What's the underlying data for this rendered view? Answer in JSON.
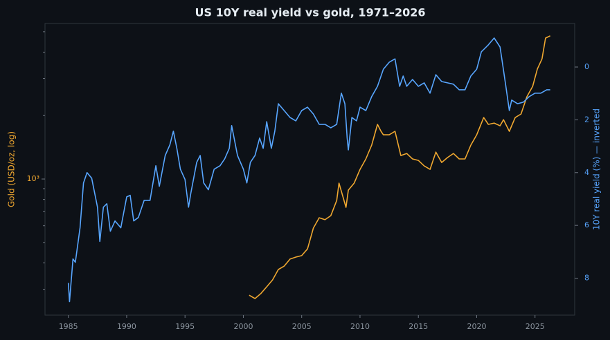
{
  "chart_data": {
    "type": "line",
    "title": "US 10Y real yield vs gold, 1971–2026",
    "y_label": "Gold (USD/oz, log)",
    "y2_label": "10Y real yield (%) — inverted",
    "xlim": [
      1983,
      2028.4
    ],
    "xticks": [
      1985,
      1990,
      1995,
      2000,
      2005,
      2010,
      2015,
      2020,
      2025
    ],
    "ylim": [
      226,
      5470
    ],
    "y_log": true,
    "yticks": [
      {
        "value": 1000,
        "label": "10³"
      }
    ],
    "yticks_minor": [
      300,
      400,
      500,
      600,
      700,
      800,
      900,
      2000,
      3000,
      4000,
      5000
    ],
    "y2lim": [
      -1.65,
      9.4
    ],
    "y2_inverted": true,
    "y2ticks": [
      0,
      2,
      4,
      6,
      8
    ],
    "series": [
      {
        "name": "Gold",
        "color": "#f0a830",
        "axis": "y",
        "x": [
          2000.5,
          2001.0,
          2001.5,
          2002.0,
          2002.5,
          2003.0,
          2003.5,
          2004.0,
          2004.5,
          2005.0,
          2005.5,
          2006.0,
          2006.5,
          2007.0,
          2007.5,
          2008.0,
          2008.2,
          2008.8,
          2009.0,
          2009.5,
          2010.0,
          2010.5,
          2011.0,
          2011.5,
          2011.8,
          2012.0,
          2012.5,
          2013.0,
          2013.5,
          2014.0,
          2014.5,
          2015.0,
          2015.5,
          2016.0,
          2016.5,
          2017.0,
          2017.5,
          2018.0,
          2018.5,
          2019.0,
          2019.5,
          2020.0,
          2020.6,
          2021.0,
          2021.5,
          2022.0,
          2022.3,
          2022.8,
          2023.3,
          2023.8,
          2024.3,
          2024.8,
          2025.2,
          2025.6,
          2025.9,
          2026.3
        ],
        "values": [
          281,
          271,
          286,
          308,
          332,
          372,
          386,
          417,
          426,
          433,
          466,
          585,
          655,
          641,
          670,
          791,
          956,
          734,
          886,
          956,
          1111,
          1245,
          1448,
          1816,
          1684,
          1621,
          1621,
          1684,
          1292,
          1322,
          1245,
          1226,
          1154,
          1111,
          1342,
          1198,
          1264,
          1322,
          1245,
          1245,
          1448,
          1621,
          1958,
          1816,
          1843,
          1789,
          1912,
          1684,
          1958,
          2034,
          2455,
          2752,
          3327,
          3717,
          4663,
          4777
        ]
      },
      {
        "name": "10Y real yield",
        "color": "#58a6ff",
        "axis": "y2",
        "x": [
          1985.0,
          1985.1,
          1985.4,
          1985.6,
          1986.0,
          1986.3,
          1986.6,
          1987.0,
          1987.5,
          1987.7,
          1988.0,
          1988.3,
          1988.6,
          1989.0,
          1989.5,
          1990.0,
          1990.3,
          1990.6,
          1991.0,
          1991.5,
          1992.0,
          1992.5,
          1992.8,
          1993.3,
          1993.7,
          1994.0,
          1994.3,
          1994.6,
          1995.0,
          1995.3,
          1995.5,
          1996.0,
          1996.3,
          1996.6,
          1997.0,
          1997.5,
          1998.0,
          1998.4,
          1998.8,
          1999.0,
          1999.5,
          2000.0,
          2000.3,
          2000.6,
          2001.0,
          2001.4,
          2001.7,
          2002.0,
          2002.4,
          2002.7,
          2003.0,
          2003.5,
          2004.0,
          2004.5,
          2005.0,
          2005.5,
          2006.0,
          2006.5,
          2007.0,
          2007.5,
          2008.0,
          2008.4,
          2008.7,
          2008.9,
          2009.0,
          2009.3,
          2009.7,
          2010.0,
          2010.5,
          2011.0,
          2011.5,
          2011.8,
          2012.0,
          2012.5,
          2013.0,
          2013.4,
          2013.7,
          2014.0,
          2014.5,
          2015.0,
          2015.5,
          2016.0,
          2016.5,
          2017.0,
          2017.5,
          2018.0,
          2018.5,
          2019.0,
          2019.5,
          2020.0,
          2020.4,
          2020.7,
          2021.0,
          2021.5,
          2022.0,
          2022.2,
          2022.5,
          2022.8,
          2023.0,
          2023.5,
          2024.0,
          2024.5,
          2025.0,
          2025.5,
          2026.0,
          2026.3
        ],
        "values": [
          8.18,
          8.89,
          7.27,
          7.4,
          6.09,
          4.39,
          4.0,
          4.21,
          5.31,
          6.61,
          5.31,
          5.18,
          6.22,
          5.83,
          6.09,
          4.92,
          4.86,
          5.83,
          5.7,
          5.05,
          5.05,
          3.74,
          4.52,
          3.35,
          2.95,
          2.43,
          3.08,
          3.87,
          4.26,
          5.31,
          4.78,
          3.61,
          3.35,
          4.39,
          4.65,
          3.87,
          3.74,
          3.48,
          3.08,
          2.22,
          3.35,
          3.87,
          4.39,
          3.61,
          3.35,
          2.69,
          3.08,
          2.07,
          3.08,
          2.43,
          1.39,
          1.65,
          1.91,
          2.04,
          1.65,
          1.52,
          1.78,
          2.17,
          2.17,
          2.3,
          2.17,
          0.99,
          1.39,
          2.69,
          3.14,
          1.91,
          2.04,
          1.52,
          1.65,
          1.12,
          0.73,
          0.34,
          0.08,
          -0.18,
          -0.31,
          0.73,
          0.34,
          0.73,
          0.47,
          0.73,
          0.6,
          0.99,
          0.29,
          0.55,
          0.6,
          0.65,
          0.86,
          0.86,
          0.34,
          0.08,
          -0.58,
          -0.71,
          -0.84,
          -1.1,
          -0.76,
          -0.18,
          0.73,
          1.65,
          1.25,
          1.39,
          1.33,
          1.12,
          0.99,
          0.99,
          0.86,
          0.86
        ]
      }
    ]
  }
}
